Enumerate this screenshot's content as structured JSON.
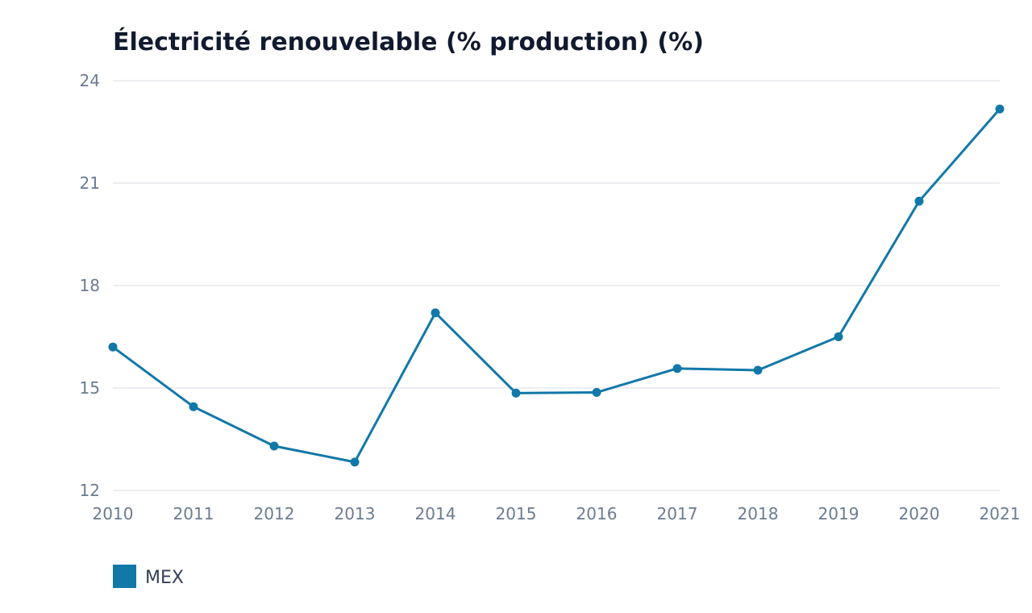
{
  "chart_data": {
    "type": "line",
    "title": "Électricité renouvelable (% production) (%)",
    "xlabel": "",
    "ylabel": "",
    "x": [
      "2010",
      "2011",
      "2012",
      "2013",
      "2014",
      "2015",
      "2016",
      "2017",
      "2018",
      "2019",
      "2020",
      "2021"
    ],
    "series": [
      {
        "name": "MEX",
        "color": "#1278a8",
        "values": [
          16.2,
          14.45,
          13.3,
          12.83,
          17.2,
          14.85,
          14.87,
          15.57,
          15.52,
          16.5,
          20.47,
          23.17
        ]
      }
    ],
    "ylim": [
      12,
      24
    ],
    "yticks": [
      "12",
      "15",
      "18",
      "21",
      "24"
    ],
    "grid": true,
    "legend_position": "bottom-left"
  }
}
